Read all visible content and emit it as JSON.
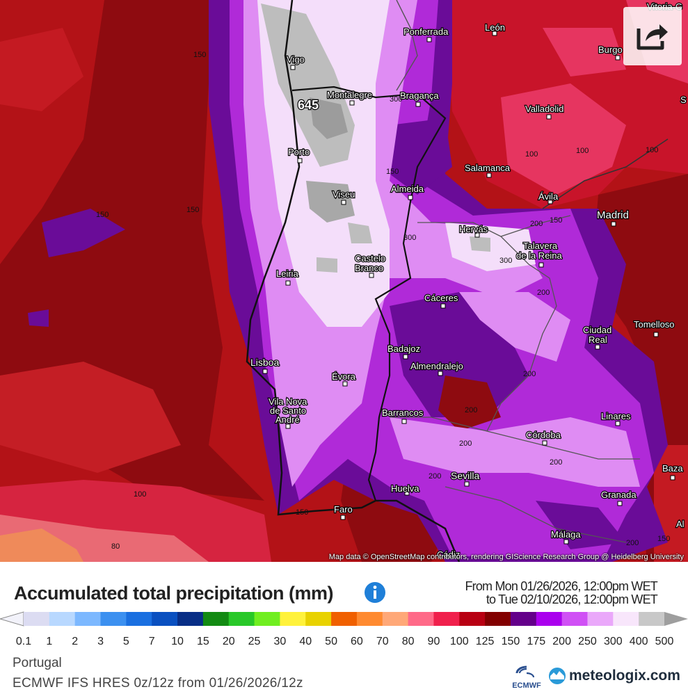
{
  "map": {
    "attribution": "Map data © OpenStreetMap contributors, rendering GIScience Research Group @ Heidelberg University",
    "max_value_label": "645",
    "cities": {
      "vigo": "Vigo",
      "montalegre": "Montalegre",
      "braganca": "Bragança",
      "ponferrada": "Ponferrada",
      "leon": "León",
      "burgos": "Burgo",
      "vitoria": "Vitoria-G",
      "valladolid": "Valladolid",
      "porto": "Porto",
      "salamanca": "Salamanca",
      "viseu": "Viseu",
      "almeida": "Almeida",
      "avila": "Ávila",
      "madrid": "Madrid",
      "hervas": "Hervás",
      "talavera1": "Talavera",
      "talavera2": "de la Reina",
      "castelo1": "Castelo",
      "castelo2": "Branco",
      "leiria": "Leiria",
      "caceres": "Cáceres",
      "ciudadreal1": "Ciudad",
      "ciudadreal2": "Real",
      "tomelloso": "Tomelloso",
      "badajoz": "Badajoz",
      "almendralejo": "Almendralejo",
      "lisboa": "Lisboa",
      "evora": "Évora",
      "vilanova1": "Vila Nova",
      "vilanova2": "de Santo",
      "vilanova3": "André",
      "barrancos": "Barrancos",
      "linares": "Linares",
      "cordoba": "Córdoba",
      "baza": "Baza",
      "sevilla": "Sevilla",
      "huelva": "Huelva",
      "faro": "Faro",
      "granada": "Granada",
      "malaga": "Málaga",
      "cadiz": "Cádiz",
      "s_edge": "S",
      "al_edge": "Al"
    },
    "contours": {
      "c150a": "150",
      "c150b": "150",
      "c150c": "150",
      "c150d": "150",
      "c150e": "150",
      "c300a": "300",
      "c300b": "300",
      "c300c": "300",
      "c100a": "100",
      "c100b": "100",
      "c100c": "100",
      "c100d": "100",
      "c200a": "200",
      "c200b": "200",
      "c200c": "200",
      "c200d": "200",
      "c200e": "200",
      "c200f": "200",
      "c200g": "200",
      "c80": "80",
      "c150f": "150",
      "c150g": "150",
      "c200h": "200"
    }
  },
  "footer": {
    "title": "Accumulated total precipitation (mm)",
    "from": "From Mon 01/26/2026, 12:00pm WET",
    "to": "to Tue 02/10/2026, 12:00pm WET",
    "region": "Portugal",
    "model": "ECMWF IFS HRES 0z/12z from 01/26/2026/12z",
    "ecmwf_label": "ECMWF",
    "brand": "meteologix.com"
  },
  "legend": {
    "labels": [
      "0.1",
      "1",
      "2",
      "3",
      "5",
      "7",
      "10",
      "15",
      "20",
      "25",
      "30",
      "40",
      "50",
      "60",
      "70",
      "80",
      "90",
      "100",
      "125",
      "150",
      "175",
      "200",
      "250",
      "300",
      "400",
      "500"
    ],
    "colors": [
      "#dcdcf2",
      "#b8d8ff",
      "#7cb8ff",
      "#3c90f0",
      "#1a6fe0",
      "#0a50c0",
      "#082e86",
      "#128a12",
      "#28c828",
      "#70ee20",
      "#fff23c",
      "#e8d200",
      "#f06000",
      "#ff8a30",
      "#ffa878",
      "#ff6a88",
      "#f0204c",
      "#b80012",
      "#820000",
      "#64008a",
      "#aa00ee",
      "#d050f5",
      "#eaa8fa",
      "#f8e6fb",
      "#c8c8c8"
    ]
  },
  "colors": {
    "sea_red": "#b81418",
    "deep_red": "#8e0b10",
    "purple": "#6a0c98",
    "violet": "#b02ad8",
    "lilac": "#df8cf3",
    "pale": "#f4defa",
    "grey": "#bdbdbd",
    "pink": "#e73360",
    "orange": "#ef8a5a",
    "info_blue": "#1f7fd8"
  }
}
